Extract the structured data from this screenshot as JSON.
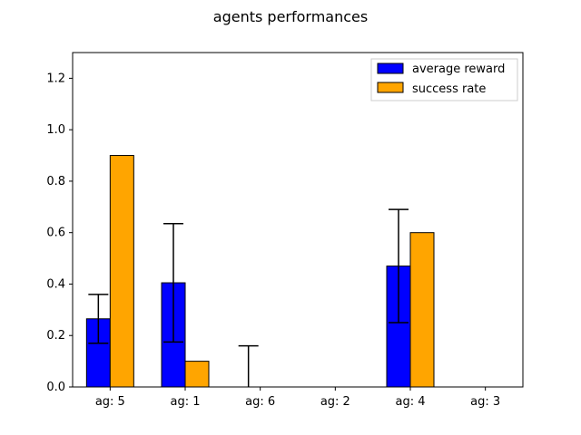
{
  "chart_data": {
    "type": "bar",
    "title": "agents performances",
    "xlabel": "",
    "ylabel": "",
    "categories": [
      "ag: 5",
      "ag: 1",
      "ag: 6",
      "ag: 2",
      "ag: 4",
      "ag: 3"
    ],
    "ylim": [
      0,
      1.3
    ],
    "yticks": [
      "0.0",
      "0.2",
      "0.4",
      "0.6",
      "0.8",
      "1.0",
      "1.2"
    ],
    "grid": false,
    "legend_position": "top-right",
    "series": [
      {
        "name": "average reward",
        "color": "#0000ff",
        "values": [
          0.265,
          0.405,
          0.0,
          0.0,
          0.47,
          0.0
        ],
        "error": [
          0.095,
          0.23,
          0.16,
          0.0,
          0.22,
          0.0
        ]
      },
      {
        "name": "success rate",
        "color": "#ffa500",
        "values": [
          0.9,
          0.1,
          0.0,
          0.0,
          0.6,
          0.0
        ]
      }
    ]
  }
}
